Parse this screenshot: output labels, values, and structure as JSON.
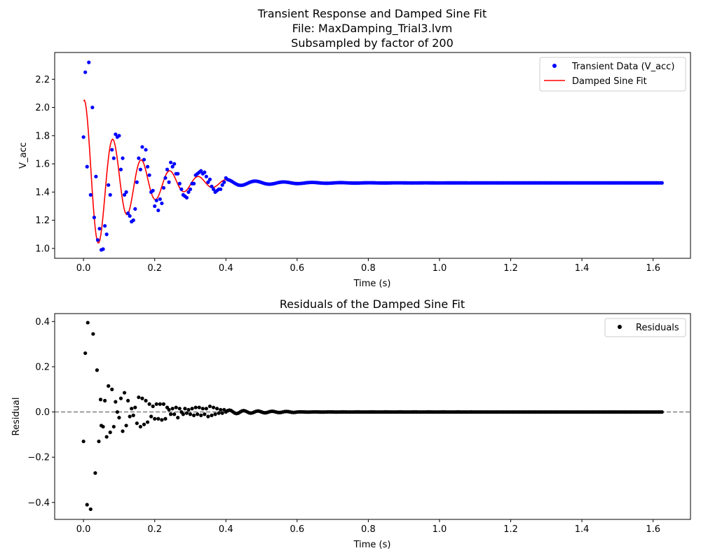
{
  "chart_data": [
    {
      "type": "scatter",
      "title_lines": [
        "Transient Response and Damped Sine Fit",
        "File: MaxDamping_Trial3.lvm",
        "Subsampled by factor of 200"
      ],
      "xlabel": "Time (s)",
      "ylabel": "V_acc",
      "xlim": [
        -0.081,
        1.705
      ],
      "ylim": [
        0.93,
        2.39
      ],
      "xticks": [
        0.0,
        0.2,
        0.4,
        0.6,
        0.8,
        1.0,
        1.2,
        1.4,
        1.6
      ],
      "xtick_labels": [
        "0.0",
        "0.2",
        "0.4",
        "0.6",
        "0.8",
        "1.0",
        "1.2",
        "1.4",
        "1.6"
      ],
      "yticks": [
        1.0,
        1.2,
        1.4,
        1.6,
        1.8,
        2.0,
        2.2
      ],
      "ytick_labels": [
        "1.0",
        "1.2",
        "1.4",
        "1.6",
        "1.8",
        "2.0",
        "2.2"
      ],
      "grid": false,
      "legend_position": "top-right",
      "legend": [
        "Transient Data (V_acc)",
        "Damped Sine Fit"
      ],
      "colors": {
        "data": "#0000ff",
        "fit": "#ff0000"
      },
      "series": [
        {
          "name": "Transient Data (V_acc)",
          "kind": "markers",
          "x": [
            0.0,
            0.005,
            0.01,
            0.015,
            0.02,
            0.025,
            0.03,
            0.035,
            0.04,
            0.045,
            0.05,
            0.055,
            0.06,
            0.065,
            0.07,
            0.075,
            0.08,
            0.085,
            0.09,
            0.095,
            0.1,
            0.105,
            0.11,
            0.115,
            0.12,
            0.125,
            0.13,
            0.135,
            0.14,
            0.145,
            0.15,
            0.155,
            0.16,
            0.165,
            0.17,
            0.175,
            0.18,
            0.185,
            0.19,
            0.195,
            0.2,
            0.205,
            0.21,
            0.215,
            0.22,
            0.225,
            0.23,
            0.235,
            0.24,
            0.245,
            0.25,
            0.255,
            0.26,
            0.265,
            0.27,
            0.275,
            0.28,
            0.285,
            0.29,
            0.295,
            0.3,
            0.305,
            0.31,
            0.315,
            0.32,
            0.325,
            0.33,
            0.335,
            0.34,
            0.345,
            0.35,
            0.355,
            0.36,
            0.365,
            0.37,
            0.375,
            0.38,
            0.385,
            0.39,
            0.395,
            0.4
          ],
          "y": [
            1.79,
            2.25,
            1.58,
            2.32,
            1.38,
            2.0,
            1.22,
            1.51,
            1.06,
            1.14,
            0.99,
            0.995,
            1.16,
            1.1,
            1.45,
            1.38,
            1.7,
            1.64,
            1.81,
            1.79,
            1.8,
            1.56,
            1.64,
            1.38,
            1.4,
            1.25,
            1.23,
            1.19,
            1.2,
            1.28,
            1.47,
            1.64,
            1.56,
            1.72,
            1.63,
            1.7,
            1.58,
            1.52,
            1.4,
            1.41,
            1.3,
            1.34,
            1.27,
            1.35,
            1.32,
            1.43,
            1.5,
            1.56,
            1.47,
            1.61,
            1.58,
            1.6,
            1.53,
            1.53,
            1.46,
            1.42,
            1.38,
            1.37,
            1.36,
            1.4,
            1.42,
            1.46,
            1.46,
            1.52,
            1.53,
            1.54,
            1.55,
            1.53,
            1.54,
            1.51,
            1.47,
            1.49,
            1.44,
            1.42,
            1.4,
            1.41,
            1.42,
            1.42,
            1.45,
            1.47,
            1.5
          ],
          "tail_description_value": 1.465,
          "tail_x_range": [
            0.405,
            1.625
          ]
        },
        {
          "name": "Damped Sine Fit",
          "kind": "line",
          "model": {
            "offset": 1.465,
            "amplitude": 0.6,
            "decay": 8.0,
            "omega": 78.5,
            "phase": 1.33
          },
          "x_range": [
            0.0,
            1.625
          ]
        }
      ]
    },
    {
      "type": "scatter",
      "title": "Residuals of the Damped Sine Fit",
      "xlabel": "Time (s)",
      "ylabel": "Residual",
      "xlim": [
        -0.081,
        1.705
      ],
      "ylim": [
        -0.475,
        0.435
      ],
      "xticks": [
        0.0,
        0.2,
        0.4,
        0.6,
        0.8,
        1.0,
        1.2,
        1.4,
        1.6
      ],
      "xtick_labels": [
        "0.0",
        "0.2",
        "0.4",
        "0.6",
        "0.8",
        "1.0",
        "1.2",
        "1.4",
        "1.6"
      ],
      "yticks": [
        -0.4,
        -0.2,
        0.0,
        0.2,
        0.4
      ],
      "ytick_labels": [
        "−0.4",
        "−0.2",
        "0.0",
        "0.2",
        "0.4"
      ],
      "grid": false,
      "legend_position": "top-right",
      "legend": [
        "Residuals"
      ],
      "reference_line": {
        "y": 0.0,
        "style": "dashed",
        "color": "#808080"
      },
      "colors": {
        "data": "#000000"
      },
      "series": [
        {
          "name": "Residuals",
          "kind": "markers",
          "x": [
            0.0,
            0.005,
            0.01,
            0.012,
            0.02,
            0.027,
            0.033,
            0.038,
            0.043,
            0.048,
            0.05,
            0.055,
            0.06,
            0.065,
            0.07,
            0.075,
            0.08,
            0.085,
            0.09,
            0.095,
            0.1,
            0.105,
            0.11,
            0.115,
            0.12,
            0.125,
            0.13,
            0.135,
            0.14,
            0.145,
            0.15,
            0.155,
            0.16,
            0.165,
            0.17,
            0.175,
            0.18,
            0.185,
            0.19,
            0.195,
            0.2,
            0.205,
            0.21,
            0.215,
            0.22,
            0.225,
            0.23,
            0.235,
            0.24,
            0.245,
            0.25,
            0.255,
            0.26,
            0.265,
            0.27,
            0.275,
            0.28,
            0.285,
            0.29,
            0.295,
            0.3,
            0.305,
            0.31,
            0.315,
            0.32,
            0.325,
            0.33,
            0.335,
            0.34,
            0.345,
            0.35,
            0.355,
            0.36,
            0.365,
            0.37,
            0.375,
            0.38,
            0.385,
            0.39,
            0.395,
            0.4
          ],
          "y": [
            -0.13,
            0.26,
            -0.41,
            0.395,
            -0.43,
            0.345,
            -0.27,
            0.185,
            -0.13,
            0.055,
            -0.06,
            -0.065,
            0.05,
            -0.11,
            0.115,
            -0.09,
            0.1,
            -0.065,
            0.045,
            0.0,
            -0.025,
            0.06,
            -0.085,
            0.085,
            -0.06,
            0.05,
            -0.02,
            0.015,
            -0.015,
            0.02,
            -0.05,
            0.065,
            -0.065,
            0.06,
            -0.055,
            0.05,
            -0.045,
            0.035,
            -0.02,
            0.025,
            -0.03,
            0.035,
            -0.03,
            0.035,
            -0.035,
            0.035,
            -0.03,
            0.02,
            0.01,
            -0.01,
            0.015,
            -0.01,
            0.02,
            -0.025,
            0.015,
            0.0,
            -0.01,
            0.015,
            -0.005,
            0.01,
            -0.01,
            0.015,
            -0.015,
            0.02,
            -0.01,
            0.02,
            -0.015,
            0.015,
            -0.01,
            0.015,
            -0.02,
            0.025,
            -0.015,
            0.02,
            -0.01,
            0.015,
            -0.005,
            0.01,
            -0.005,
            0.01,
            0.0
          ],
          "tail_description_value": 0.0,
          "tail_x_range": [
            0.405,
            1.625
          ]
        }
      ]
    }
  ]
}
